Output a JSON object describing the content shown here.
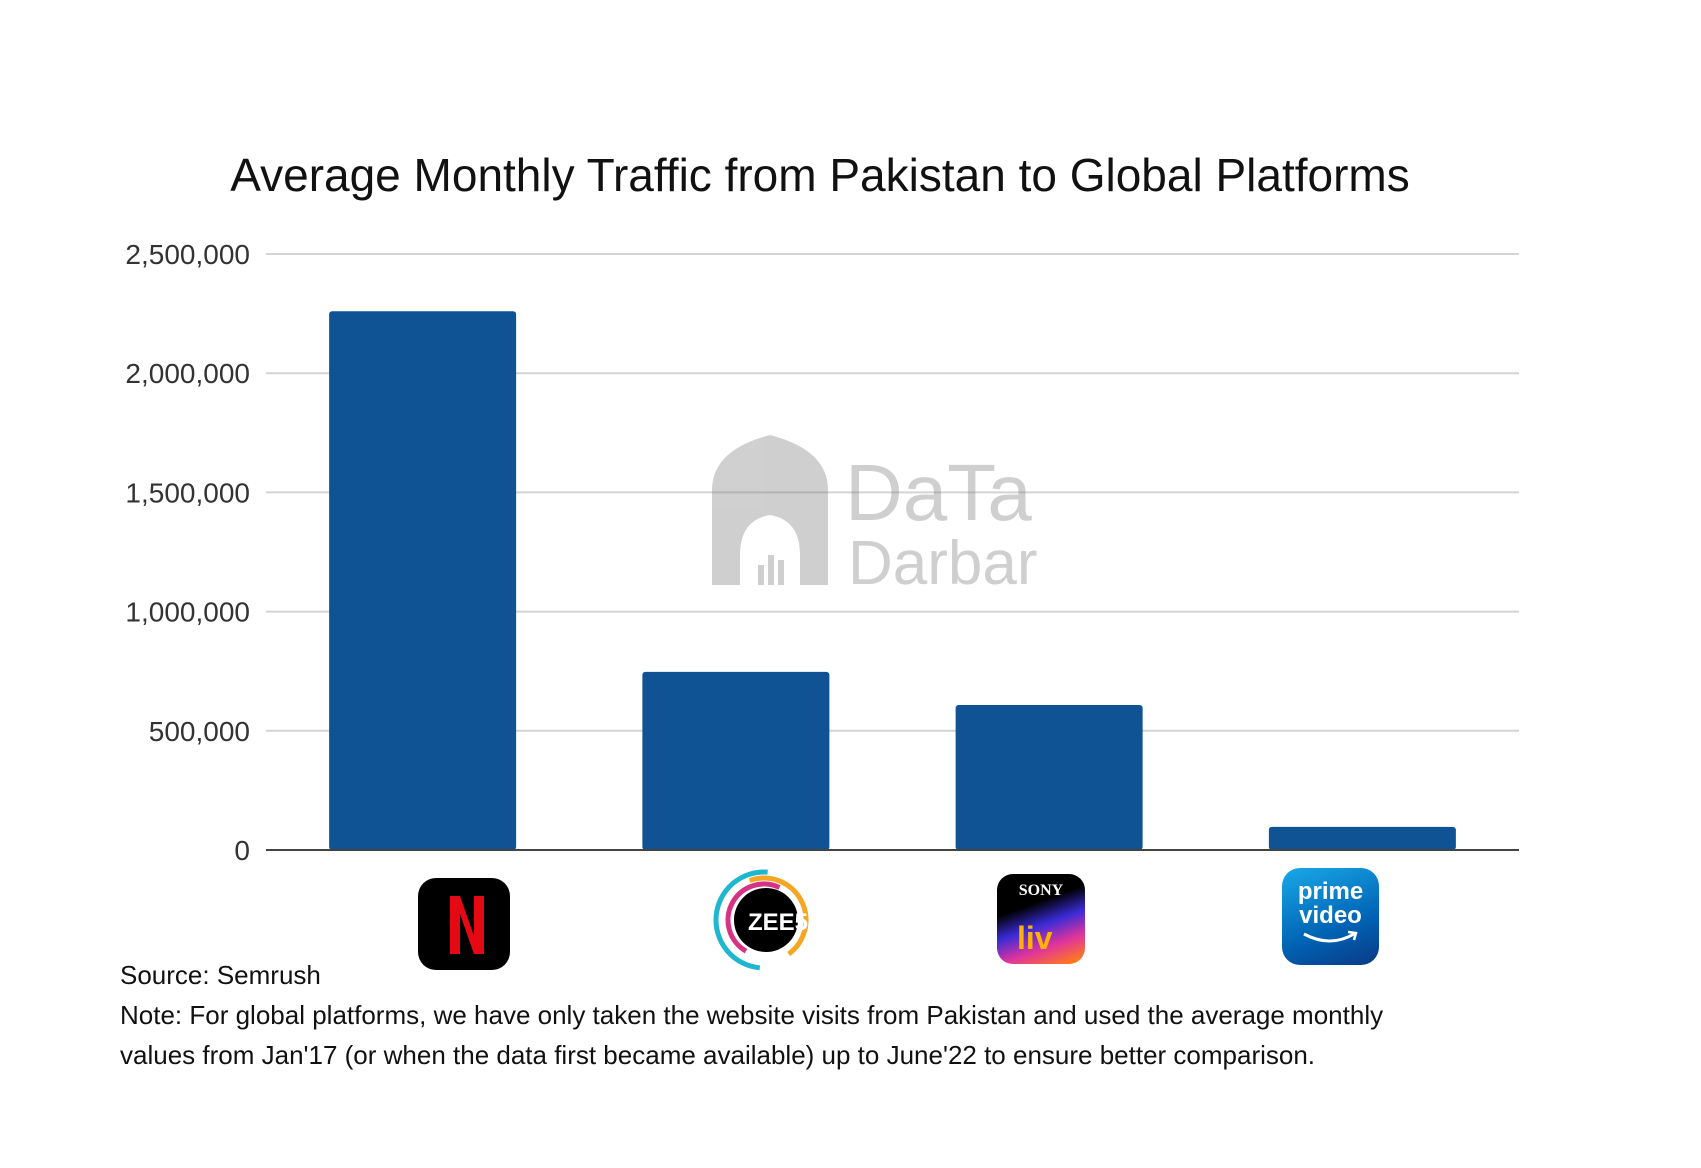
{
  "chart_data": {
    "type": "bar",
    "title": "Average Monthly Traffic from Pakistan to Global Platforms",
    "categories": [
      "Netflix",
      "ZEE5",
      "SonyLIV",
      "Prime Video"
    ],
    "values": [
      2260000,
      747000,
      608000,
      97000
    ],
    "ylim": [
      0,
      2500000
    ],
    "yticks": [
      "0",
      "500,000",
      "1,000,000",
      "1,500,000",
      "2,000,000",
      "2,500,000"
    ],
    "grid": true,
    "legend": "none",
    "bar_color": "#0f5394",
    "category_labels_as": "logos"
  },
  "logos": {
    "zee5_text": "ZEE5",
    "sony_text": "SONY",
    "liv_text": "liv",
    "prime_text_1": "prime",
    "prime_text_2": "video"
  },
  "watermark": {
    "line1": "DaTa",
    "line2": "Darbar"
  },
  "footer": {
    "source": "Source: Semrush",
    "note_line1": "Note: For global platforms, we have only taken the website visits from Pakistan and used the average monthly",
    "note_line2": "values from Jan'17 (or when the data first became available) up to June'22 to ensure better comparison."
  }
}
